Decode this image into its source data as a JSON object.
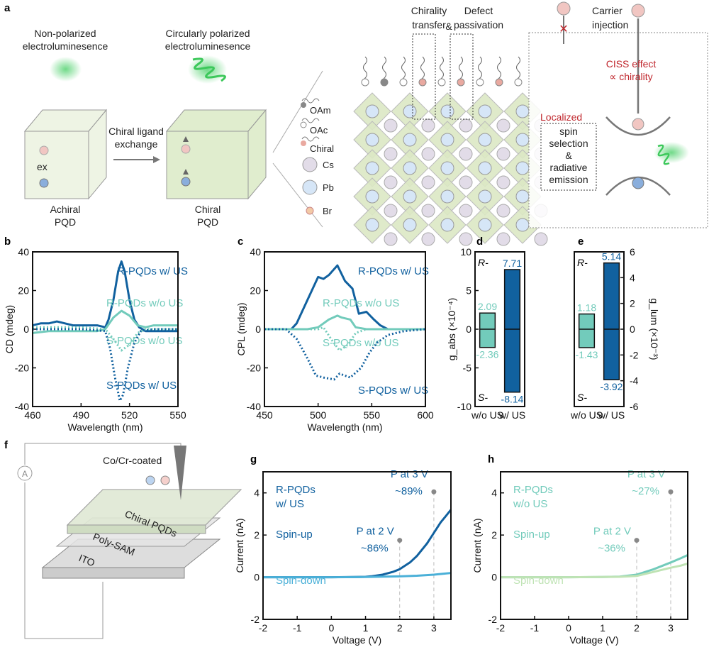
{
  "colors": {
    "dark_blue": "#11619f",
    "teal": "#72cbbb",
    "light_blue": "#4ab0d8",
    "light_green": "#bfe3b4",
    "red": "#c0272d"
  },
  "panel_a": {
    "label": "a",
    "nonpolarized": [
      "Non-polarized",
      "electroluminesence"
    ],
    "circular": [
      "Circularly polarized",
      "electroluminesence"
    ],
    "achiral": [
      "Achiral",
      "PQD"
    ],
    "chiral": [
      "Chiral",
      "PQD"
    ],
    "ex": "ex",
    "exchange": [
      "Chiral ligand",
      "exchange"
    ],
    "legend": [
      "OAm",
      "OAc",
      "Chiral",
      "Cs",
      "Pb",
      "Br"
    ],
    "chirality_transfer": [
      "Chirality",
      "transfer"
    ],
    "amp": "&",
    "defect": [
      "Defect",
      "passivation"
    ],
    "carrier": [
      "Carrier",
      "injection"
    ],
    "ciss": [
      "CISS effect",
      "∝ chirality"
    ],
    "localized": "Localized",
    "spin_box": [
      "spin",
      "selection",
      "&",
      "radiative",
      "emission"
    ]
  },
  "panel_f": {
    "label": "f",
    "tip": "Co/Cr-coated",
    "layers": [
      "Chiral PQDs",
      "Poly-SAM",
      "ITO"
    ],
    "meter": "A"
  },
  "chart_data": [
    {
      "id": "b",
      "type": "line",
      "xlabel": "Wavelength (nm)",
      "ylabel": "CD (mdeg)",
      "xlim": [
        460,
        550
      ],
      "ylim": [
        -40,
        40
      ],
      "xticks": [
        460,
        490,
        520,
        550
      ],
      "yticks": [
        -40,
        -20,
        0,
        20,
        40
      ],
      "grid": false,
      "series": [
        {
          "name": "R-PQDs w/ US",
          "color": "#11619f",
          "dash": false,
          "x": [
            460,
            465,
            470,
            475,
            480,
            485,
            490,
            495,
            500,
            505,
            507,
            510,
            513,
            515,
            517,
            520,
            523,
            526,
            530,
            540,
            550
          ],
          "y": [
            2,
            3,
            3,
            4,
            3,
            2,
            2,
            2,
            2,
            1,
            5,
            15,
            30,
            35,
            30,
            15,
            5,
            1,
            -1,
            -1,
            -1
          ]
        },
        {
          "name": "R-PQDs w/o US",
          "color": "#72cbbb",
          "dash": false,
          "x": [
            460,
            470,
            480,
            490,
            500,
            505,
            510,
            515,
            520,
            525,
            530,
            535,
            550
          ],
          "y": [
            -2,
            -1,
            -1,
            -1,
            -1,
            0,
            6,
            9.5,
            7,
            2,
            1,
            2,
            2
          ]
        },
        {
          "name": "S-PQDs w/o US",
          "color": "#72cbbb",
          "dash": true,
          "x": [
            460,
            480,
            490,
            505,
            510,
            515,
            520,
            525,
            530,
            550
          ],
          "y": [
            1,
            1,
            1,
            0,
            -5,
            -11,
            -8,
            -2,
            0,
            0
          ]
        },
        {
          "name": "S-PQDs w/ US",
          "color": "#11619f",
          "dash": true,
          "x": [
            460,
            490,
            505,
            508,
            511,
            514,
            516,
            519,
            523,
            527,
            535,
            550
          ],
          "y": [
            0,
            0,
            -1,
            -10,
            -25,
            -37,
            -34,
            -20,
            -7,
            -1,
            0,
            0
          ]
        }
      ]
    },
    {
      "id": "c",
      "type": "line",
      "xlabel": "Wavelength (nm)",
      "ylabel": "CPL (mdeg)",
      "xlim": [
        450,
        600
      ],
      "ylim": [
        -40,
        40
      ],
      "xticks": [
        450,
        500,
        550,
        600
      ],
      "yticks": [
        -40,
        -20,
        0,
        20,
        40
      ],
      "grid": false,
      "series": [
        {
          "name": "R-PQDs w/ US",
          "color": "#11619f",
          "dash": false,
          "x": [
            450,
            475,
            480,
            490,
            500,
            505,
            510,
            518,
            525,
            532,
            538,
            545,
            552,
            558,
            565,
            600
          ],
          "y": [
            0,
            0,
            3,
            15,
            27,
            26,
            28,
            33,
            25,
            21,
            8,
            9,
            5,
            2,
            0,
            0
          ]
        },
        {
          "name": "R-PQDs w/o US",
          "color": "#72cbbb",
          "dash": false,
          "x": [
            450,
            490,
            500,
            510,
            518,
            522,
            530,
            535,
            545,
            600
          ],
          "y": [
            0,
            0,
            1,
            5,
            7,
            6,
            5,
            1,
            0,
            0
          ]
        },
        {
          "name": "S-PQDs w/o US",
          "color": "#72cbbb",
          "dash": true,
          "x": [
            450,
            500,
            505,
            512,
            520,
            528,
            535,
            545,
            600
          ],
          "y": [
            0,
            0,
            1,
            -5,
            -11,
            -8,
            -2,
            0,
            0
          ]
        },
        {
          "name": "S-PQDs w/ US",
          "color": "#11619f",
          "dash": true,
          "x": [
            450,
            470,
            480,
            490,
            498,
            505,
            515,
            520,
            530,
            540,
            548,
            555,
            565,
            580,
            600
          ],
          "y": [
            0,
            0,
            -5,
            -15,
            -24,
            -25,
            -26,
            -23,
            -25,
            -20,
            -12,
            -7,
            -3,
            -1,
            0
          ]
        }
      ]
    },
    {
      "id": "d",
      "type": "bar",
      "ylabel": "g_abs (×10⁻⁴)",
      "categories": [
        "w/o US",
        "w/ US"
      ],
      "ylim": [
        -10,
        10
      ],
      "yticks": [
        -10,
        -5,
        0,
        5,
        10
      ],
      "pos": [
        2.09,
        7.71
      ],
      "neg": [
        -2.36,
        -8.14
      ],
      "pos_labels": [
        "2.09",
        "7.71"
      ],
      "neg_labels": [
        "-2.36",
        "-8.14"
      ],
      "colors": [
        "#72cbbb",
        "#11619f"
      ],
      "corner": [
        "R-",
        "S-"
      ]
    },
    {
      "id": "e",
      "type": "bar",
      "ylabel": "g_lum (×10⁻³)",
      "categories": [
        "w/o US",
        "w/ US"
      ],
      "ylim": [
        -6,
        6
      ],
      "yticks": [
        -6,
        -4,
        -2,
        0,
        2,
        4,
        6
      ],
      "pos": [
        1.18,
        5.14
      ],
      "neg": [
        -1.43,
        -3.92
      ],
      "pos_labels": [
        "1.18",
        "5.14"
      ],
      "neg_labels": [
        "-1.43",
        "-3.92"
      ],
      "colors": [
        "#72cbbb",
        "#11619f"
      ],
      "corner": [
        "R-",
        "S-"
      ]
    },
    {
      "id": "g",
      "type": "line",
      "xlabel": "Voltage (V)",
      "ylabel": "Current (nA)",
      "xlim": [
        -2,
        3.5
      ],
      "ylim": [
        -2,
        5
      ],
      "xticks": [
        -2,
        -1,
        0,
        1,
        2,
        3
      ],
      "yticks": [
        -2,
        0,
        2,
        4
      ],
      "grid": false,
      "title": [
        "R-PQDs",
        "w/ US"
      ],
      "annotations": [
        {
          "text": [
            "P at 2 V",
            "~86%"
          ],
          "x": 2,
          "y": 1.75
        },
        {
          "text": [
            "P at 3 V",
            "~89%"
          ],
          "x": 3,
          "y": 4.05
        }
      ],
      "series": [
        {
          "name": "Spin-up",
          "color": "#11619f",
          "dash": false,
          "x": [
            -2,
            -1,
            0,
            1,
            1.2,
            1.5,
            1.8,
            2,
            2.3,
            2.5,
            2.8,
            3,
            3.2,
            3.35,
            3.5
          ],
          "y": [
            0,
            0,
            0,
            0.02,
            0.05,
            0.12,
            0.25,
            0.38,
            0.7,
            1.0,
            1.6,
            2.1,
            2.6,
            2.9,
            3.2
          ]
        },
        {
          "name": "Spin-down",
          "color": "#4ab0d8",
          "dash": false,
          "x": [
            -2,
            0,
            1,
            2,
            2.5,
            3,
            3.5
          ],
          "y": [
            0,
            0,
            0.01,
            0.04,
            0.07,
            0.12,
            0.2
          ]
        }
      ]
    },
    {
      "id": "h",
      "type": "line",
      "xlabel": "Voltage (V)",
      "ylabel": "Current (nA)",
      "xlim": [
        -2,
        3.5
      ],
      "ylim": [
        -2,
        5
      ],
      "xticks": [
        -2,
        -1,
        0,
        1,
        2,
        3
      ],
      "yticks": [
        -2,
        0,
        2,
        4
      ],
      "grid": false,
      "title": [
        "R-PQDs",
        "w/o US"
      ],
      "annotations": [
        {
          "text": [
            "P at 2 V",
            "~36%"
          ],
          "x": 2,
          "y": 1.75
        },
        {
          "text": [
            "P at 3 V",
            "~27%"
          ],
          "x": 3,
          "y": 4.05
        }
      ],
      "series": [
        {
          "name": "Spin-up",
          "color": "#72cbbb",
          "dash": false,
          "x": [
            -2,
            0,
            1,
            1.5,
            2,
            2.5,
            3,
            3.3,
            3.5
          ],
          "y": [
            0,
            0,
            0.01,
            0.03,
            0.12,
            0.38,
            0.7,
            0.9,
            1.05
          ]
        },
        {
          "name": "Spin-down",
          "color": "#bfe3b4",
          "dash": false,
          "x": [
            -2,
            0,
            1,
            1.5,
            2,
            2.5,
            3,
            3.3,
            3.5
          ],
          "y": [
            0,
            0,
            0.01,
            0.02,
            0.06,
            0.25,
            0.45,
            0.55,
            0.65
          ]
        }
      ]
    }
  ]
}
